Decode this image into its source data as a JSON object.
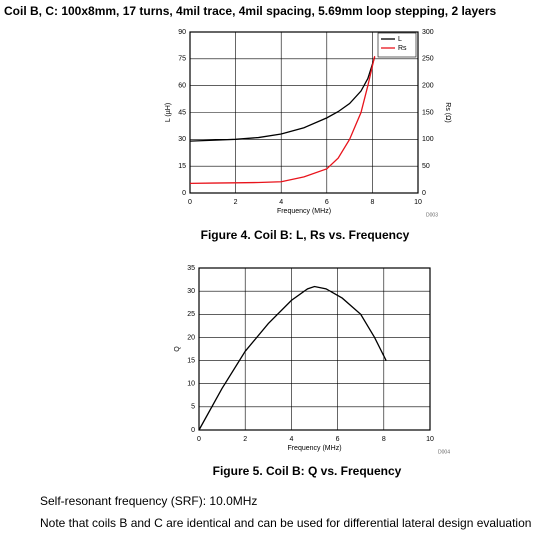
{
  "title": "Coil B, C: 100x8mm, 17 turns, 4mil trace, 4mil spacing, 5.69mm loop stepping, 2 layers",
  "chart_data": [
    {
      "type": "line",
      "x_label": "Frequency (MHz)",
      "y_label": "L (µH)",
      "y2_label": "Rs (Ω)",
      "code": "D003",
      "caption": "Figure 4. Coil B: L, Rs vs. Frequency",
      "x": [
        0,
        1,
        2,
        3,
        4,
        5,
        6,
        6.5,
        7,
        7.5,
        7.8,
        8.1
      ],
      "series": [
        {
          "name": "L",
          "color": "#000000",
          "values": [
            29,
            29.5,
            30,
            31,
            33,
            36.5,
            42,
            45.5,
            50,
            57,
            64,
            76
          ]
        },
        {
          "name": "Rs",
          "color": "#e8141c",
          "axis": "y2",
          "values": [
            18,
            18.5,
            19,
            19.5,
            21,
            30,
            45,
            65,
            100,
            150,
            200,
            255
          ]
        }
      ],
      "xlim": [
        0,
        10
      ],
      "xticks": [
        0,
        2,
        4,
        6,
        8,
        10
      ],
      "ylim": [
        0,
        90
      ],
      "yticks": [
        0,
        15,
        30,
        45,
        60,
        75,
        90
      ],
      "y2lim": [
        0,
        300
      ],
      "y2ticks": [
        0,
        50,
        100,
        150,
        200,
        250,
        300
      ],
      "grid": true,
      "legend": "upper right"
    },
    {
      "type": "line",
      "x_label": "Frequency (MHz)",
      "y_label": "Q",
      "code": "D004",
      "caption": "Figure 5. Coil B: Q vs. Frequency",
      "x": [
        0,
        1,
        2,
        3,
        4,
        4.7,
        5,
        5.5,
        6.2,
        7,
        7.6,
        8.1
      ],
      "values": [
        0,
        9,
        17,
        23,
        28,
        30.5,
        31,
        30.5,
        28.5,
        25,
        20,
        15
      ],
      "color": "#000000",
      "xlim": [
        0,
        10
      ],
      "xticks": [
        0,
        2,
        4,
        6,
        8,
        10
      ],
      "ylim": [
        0,
        35
      ],
      "yticks": [
        0,
        5,
        10,
        15,
        20,
        25,
        30,
        35
      ],
      "grid": true
    }
  ],
  "notes": [
    "Self-resonant frequency (SRF): 10.0MHz",
    "Note that coils B and C are identical and can be used for differential lateral design evaluation"
  ]
}
